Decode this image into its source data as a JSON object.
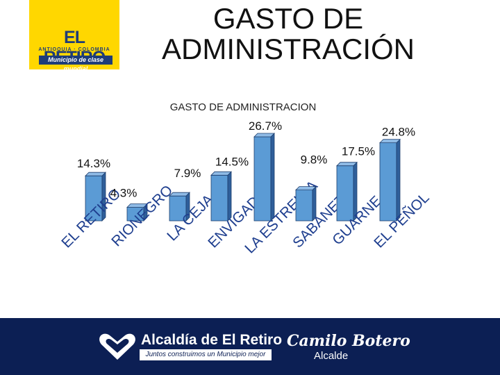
{
  "header": {
    "title_line1": "GASTO DE",
    "title_line2": "ADMINISTRACIÓN",
    "logo": {
      "name": "EL RETIRO",
      "subtitle": "ANTIOQUIA · COLOMBIA",
      "slogan": "Municipio de clase mundial",
      "colors": {
        "background": "#ffd700",
        "text": "#1e3c78"
      }
    }
  },
  "chart_data": {
    "type": "bar",
    "title": "GASTO DE ADMINISTRACION",
    "categories": [
      "EL RETIRO",
      "RIONEGRO",
      "LA CEJA",
      "ENVIGADO",
      "LA ESTRELLA",
      "SABANETA",
      "GUARNE",
      "EL PEÑOL"
    ],
    "values": [
      14.3,
      4.3,
      7.9,
      14.5,
      26.7,
      9.8,
      17.5,
      24.8
    ],
    "value_labels": [
      "14.3%",
      "4.3%",
      "7.9%",
      "14.5%",
      "26.7%",
      "9.8%",
      "17.5%",
      "24.8%"
    ],
    "xlabel": "",
    "ylabel": "",
    "ylim": [
      0,
      26.7
    ],
    "grid": false,
    "legend": "none",
    "bar_color": "#5b9bd5"
  },
  "footer": {
    "org_name": "Alcaldía de El Retiro",
    "org_slogan": "Juntos construimos un Municipio mejor",
    "mayor_name": "Camilo Botero",
    "mayor_title": "Alcalde",
    "background": "#0c1f54"
  }
}
